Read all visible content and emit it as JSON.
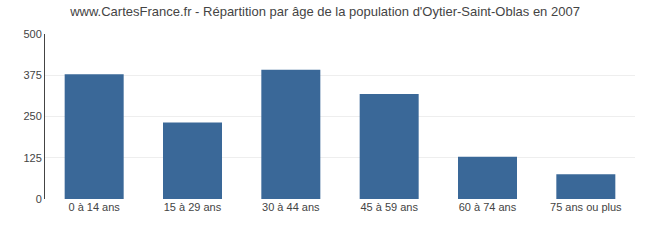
{
  "chart_data": {
    "type": "bar",
    "title": "www.CartesFrance.fr - Répartition par âge de la population d'Oytier-Saint-Oblas en 2007",
    "categories": [
      "0 à 14 ans",
      "15 à 29 ans",
      "30 à 44 ans",
      "45 à 59 ans",
      "60 à 74 ans",
      "75 ans ou plus"
    ],
    "values": [
      378,
      232,
      392,
      318,
      128,
      75
    ],
    "color": "#3a6898",
    "ylim": [
      0,
      500
    ],
    "yticks": [
      0,
      125,
      250,
      375,
      500
    ],
    "grid": true
  }
}
